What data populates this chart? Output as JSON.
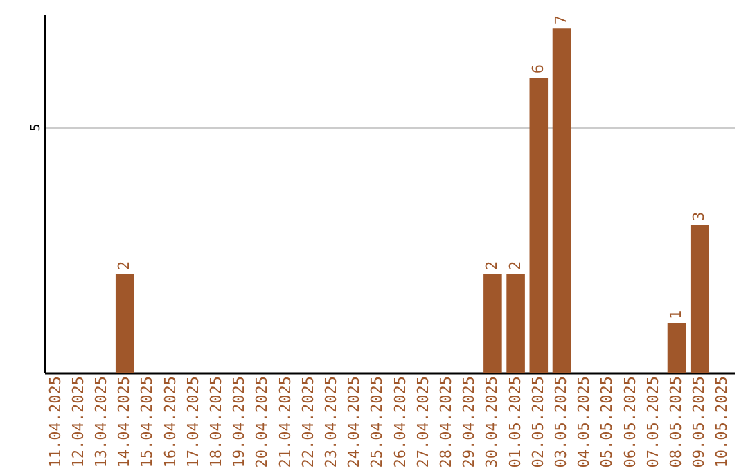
{
  "chart_data": {
    "type": "bar",
    "categories": [
      "11.04.2025",
      "12.04.2025",
      "13.04.2025",
      "14.04.2025",
      "15.04.2025",
      "16.04.2025",
      "17.04.2025",
      "18.04.2025",
      "19.04.2025",
      "20.04.2025",
      "21.04.2025",
      "22.04.2025",
      "23.04.2025",
      "24.04.2025",
      "25.04.2025",
      "26.04.2025",
      "27.04.2025",
      "28.04.2025",
      "29.04.2025",
      "30.04.2025",
      "01.05.2025",
      "02.05.2025",
      "03.05.2025",
      "04.05.2025",
      "05.05.2025",
      "06.05.2025",
      "07.05.2025",
      "08.05.2025",
      "09.05.2025",
      "10.05.2025"
    ],
    "values": [
      0,
      0,
      0,
      2,
      0,
      0,
      0,
      0,
      0,
      0,
      0,
      0,
      0,
      0,
      0,
      0,
      0,
      0,
      0,
      2,
      2,
      6,
      7,
      0,
      0,
      0,
      0,
      1,
      3,
      0
    ],
    "value_labels": [
      null,
      null,
      null,
      "2",
      null,
      null,
      null,
      null,
      null,
      null,
      null,
      null,
      null,
      null,
      null,
      null,
      null,
      null,
      null,
      "2",
      "2",
      "6",
      "7",
      null,
      null,
      null,
      null,
      "1",
      "3",
      null
    ],
    "color": "#a0572a",
    "ylim": [
      0,
      7.3
    ],
    "yticks": [
      5
    ],
    "grid": "y"
  }
}
